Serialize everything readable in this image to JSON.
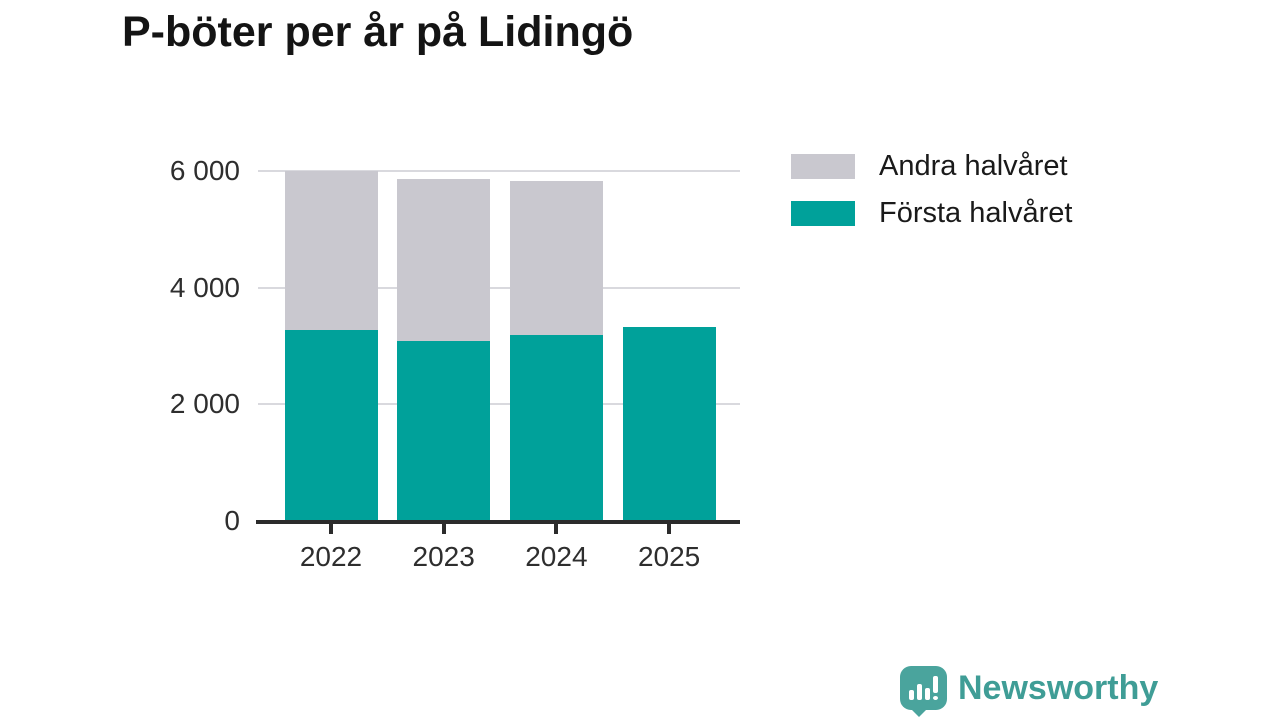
{
  "title": "P-böter per år på Lidingö",
  "chart_data": {
    "type": "bar",
    "stacked": true,
    "title": "P-böter per år på Lidingö",
    "categories": [
      "2022",
      "2023",
      "2024",
      "2025"
    ],
    "series": [
      {
        "name": "Första halvåret",
        "color": "#00a19a",
        "values": [
          3280,
          3090,
          3190,
          3320
        ]
      },
      {
        "name": "Andra halvåret",
        "color": "#c9c8cf",
        "values": [
          2720,
          2770,
          2640,
          null
        ]
      }
    ],
    "totals": [
      6000,
      5860,
      5830,
      3320
    ],
    "xlabel": "",
    "ylabel": "",
    "ylim": [
      0,
      6000
    ],
    "yticks": [
      {
        "value": 0,
        "label": "0"
      },
      {
        "value": 2000,
        "label": "2 000"
      },
      {
        "value": 4000,
        "label": "4 000"
      },
      {
        "value": 6000,
        "label": "6 000"
      }
    ],
    "grid": true,
    "legend_position": "top-right"
  },
  "legend": {
    "items": [
      {
        "label": "Andra halvåret",
        "color": "#c9c8cf"
      },
      {
        "label": "Första halvåret",
        "color": "#00a19a"
      }
    ]
  },
  "branding": {
    "name": "Newsworthy",
    "icon": "bar-chart-speech-bubble-icon",
    "text_color": "#3f9d96",
    "icon_color": "#4aa49d"
  },
  "colors": {
    "background": "#ffffff",
    "title_text": "#141414",
    "axis_text": "#2e2e2e",
    "axis_line": "#2b2b2b",
    "gridline": "#d9d9de",
    "bar_teal": "#00a19a",
    "bar_gray": "#c9c8cf"
  }
}
